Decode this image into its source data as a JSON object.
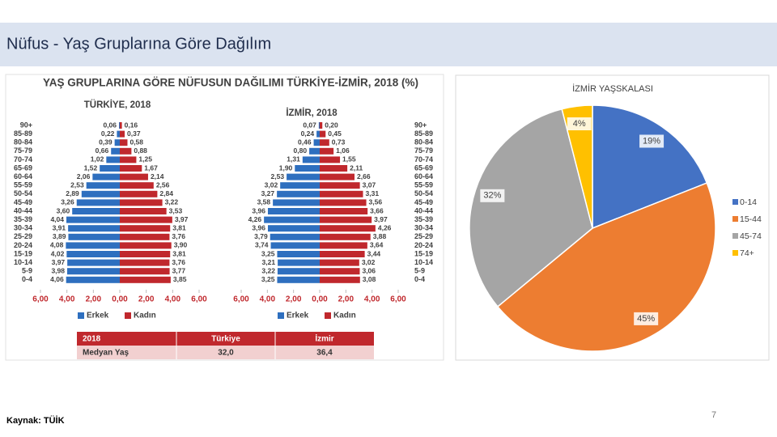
{
  "header": {
    "title": "Nüfus - Yaş Gruplarına Göre Dağılım"
  },
  "figure": {
    "title": "YAŞ GRUPLARINA GÖRE NÜFUSUN DAĞILIMI TÜRKİYE-İZMİR, 2018 (%)",
    "table": {
      "header": [
        "2018",
        "Türkiye",
        "İzmir"
      ],
      "rows": [
        [
          "Medyan Yaş",
          "32,0",
          "36,4"
        ]
      ]
    }
  },
  "chart_data": [
    {
      "type": "pyramid",
      "title": "TÜRKİYE, 2018",
      "categories": [
        "90+",
        "85-89",
        "80-84",
        "75-79",
        "70-74",
        "65-69",
        "60-64",
        "55-59",
        "50-54",
        "45-49",
        "40-44",
        "35-39",
        "30-34",
        "25-29",
        "20-24",
        "15-19",
        "10-14",
        "5-9",
        "0-4"
      ],
      "series": [
        {
          "name": "Erkek",
          "color": "#2e6fbf",
          "direction": "left",
          "values": [
            0.06,
            0.22,
            0.39,
            0.66,
            1.02,
            1.52,
            2.06,
            2.53,
            2.89,
            3.26,
            3.6,
            4.04,
            3.91,
            3.89,
            4.08,
            4.02,
            3.97,
            3.98,
            4.06
          ],
          "value_labels": [
            "0,06",
            "0,22",
            "0,39",
            "0,66",
            "1,02",
            "1,52",
            "2,06",
            "2,53",
            "2,89",
            "3,26",
            "3,60",
            "4,04",
            "3,91",
            "3,89",
            "4,08",
            "4,02",
            "3,97",
            "3,98",
            "4,06"
          ]
        },
        {
          "name": "Kadın",
          "color": "#c0282d",
          "direction": "right",
          "values": [
            0.16,
            0.37,
            0.58,
            0.88,
            1.25,
            1.67,
            2.14,
            2.56,
            2.84,
            3.22,
            3.53,
            3.97,
            3.81,
            3.76,
            3.9,
            3.81,
            3.76,
            3.77,
            3.85
          ],
          "value_labels": [
            "0,16",
            "0,37",
            "0,58",
            "0,88",
            "1,25",
            "1,67",
            "2,14",
            "2,56",
            "2,84",
            "3,22",
            "3,53",
            "3,97",
            "3,81",
            "3,76",
            "3,90",
            "3,81",
            "3,76",
            "3,77",
            "3,85"
          ]
        }
      ],
      "xlim": [
        -6,
        6
      ],
      "xticks": [
        {
          "value": -6,
          "label": "6,00"
        },
        {
          "value": -4,
          "label": "4,00"
        },
        {
          "value": -2,
          "label": "2,00"
        },
        {
          "value": 0,
          "label": "0,00"
        },
        {
          "value": 2,
          "label": "2,00"
        },
        {
          "value": 4,
          "label": "4,00"
        },
        {
          "value": 6,
          "label": "6,00"
        }
      ]
    },
    {
      "type": "pyramid",
      "title": "İZMİR, 2018",
      "categories": [
        "90+",
        "85-89",
        "80-84",
        "75-79",
        "70-74",
        "65-69",
        "60-64",
        "55-59",
        "50-54",
        "45-49",
        "40-44",
        "35-39",
        "30-34",
        "25-29",
        "20-24",
        "15-19",
        "10-14",
        "5-9",
        "0-4"
      ],
      "series": [
        {
          "name": "Erkek",
          "color": "#2e6fbf",
          "direction": "left",
          "values": [
            0.07,
            0.24,
            0.46,
            0.8,
            1.31,
            1.9,
            2.53,
            3.02,
            3.27,
            3.58,
            3.96,
            4.26,
            3.96,
            3.79,
            3.74,
            3.25,
            3.21,
            3.22,
            3.25
          ],
          "value_labels": [
            "0,07",
            "0,24",
            "0,46",
            "0,80",
            "1,31",
            "1,90",
            "2,53",
            "3,02",
            "3,27",
            "3,58",
            "3,96",
            "4,26",
            "3,96",
            "3,79",
            "3,74",
            "3,25",
            "3,21",
            "3,22",
            "3,25"
          ]
        },
        {
          "name": "Kadın",
          "color": "#c0282d",
          "direction": "right",
          "values": [
            0.2,
            0.45,
            0.73,
            1.06,
            1.55,
            2.11,
            2.66,
            3.07,
            3.31,
            3.56,
            3.66,
            3.97,
            4.26,
            3.88,
            3.64,
            3.44,
            3.02,
            3.06,
            3.08
          ],
          "value_labels": [
            "0,20",
            "0,45",
            "0,73",
            "1,06",
            "1,55",
            "2,11",
            "2,66",
            "3,07",
            "3,31",
            "3,56",
            "3,66",
            "3,97",
            "4,26",
            "3,88",
            "3,64",
            "3,44",
            "3,02",
            "3,06",
            "3,08"
          ]
        }
      ],
      "xlim": [
        -6,
        6
      ],
      "xticks": [
        {
          "value": -6,
          "label": "6,00"
        },
        {
          "value": -4,
          "label": "4,00"
        },
        {
          "value": -2,
          "label": "2,00"
        },
        {
          "value": 0,
          "label": "0,00"
        },
        {
          "value": 2,
          "label": "2,00"
        },
        {
          "value": 4,
          "label": "4,00"
        },
        {
          "value": 6,
          "label": "6,00"
        }
      ]
    },
    {
      "type": "pie",
      "title": "İZMİR YAŞSKALASI",
      "categories": [
        "0-14",
        "15-44",
        "45-74",
        "74+"
      ],
      "values": [
        19,
        45,
        32,
        4
      ],
      "value_labels": [
        "19%",
        "45%",
        "32%",
        "4%"
      ],
      "colors": [
        "#4472c4",
        "#ed7d31",
        "#a5a5a5",
        "#ffc000"
      ],
      "legend": "right"
    }
  ],
  "footer": {
    "source": "Kaynak: TÜİK",
    "page": "7"
  }
}
